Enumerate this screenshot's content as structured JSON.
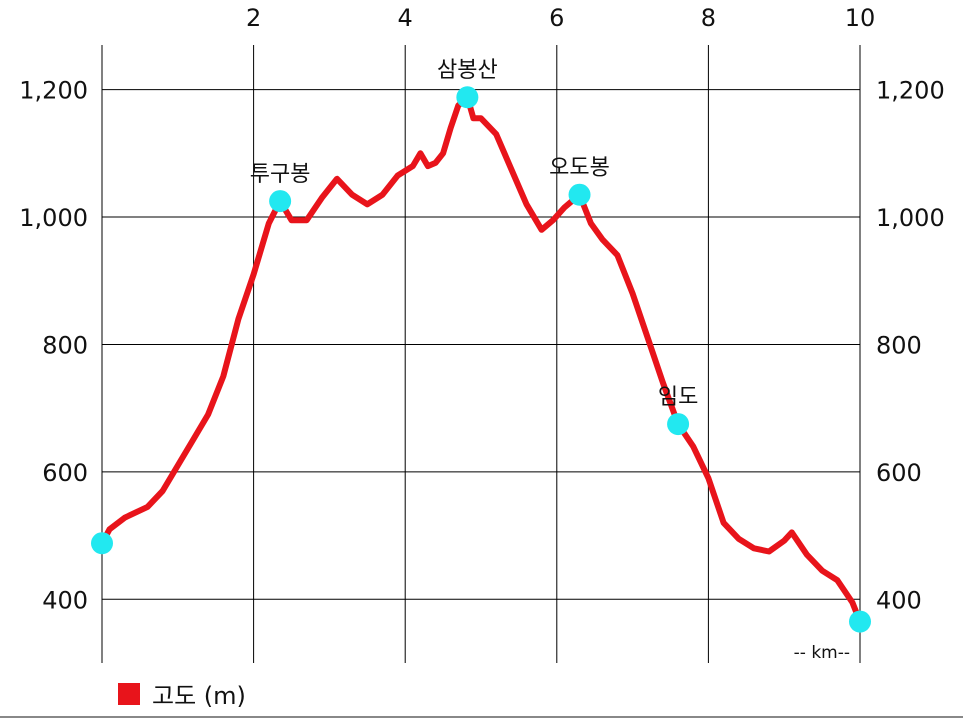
{
  "chart_data": {
    "type": "line",
    "x_unit_label": "-- km--",
    "xlim": [
      0,
      10
    ],
    "ylim": [
      300,
      1270
    ],
    "x_ticks": [
      2,
      4,
      6,
      8,
      10
    ],
    "y_ticks": [
      400,
      600,
      800,
      1000,
      1200
    ],
    "y_tick_labels": [
      "400",
      "600",
      "800",
      "1,000",
      "1,200"
    ],
    "grid": true,
    "series": [
      {
        "name": "고도 (m)",
        "color": "#e8141b",
        "x": [
          0,
          0.1,
          0.3,
          0.6,
          0.8,
          1.0,
          1.2,
          1.4,
          1.6,
          1.8,
          2.0,
          2.2,
          2.35,
          2.5,
          2.7,
          2.9,
          3.1,
          3.3,
          3.5,
          3.7,
          3.9,
          4.1,
          4.2,
          4.3,
          4.4,
          4.5,
          4.6,
          4.7,
          4.82,
          4.9,
          5.0,
          5.2,
          5.4,
          5.6,
          5.8,
          5.95,
          6.1,
          6.3,
          6.45,
          6.6,
          6.8,
          7.0,
          7.2,
          7.4,
          7.6,
          7.8,
          8.0,
          8.2,
          8.4,
          8.6,
          8.8,
          9.0,
          9.1,
          9.3,
          9.5,
          9.7,
          9.9,
          10.0
        ],
        "y": [
          488,
          510,
          528,
          545,
          570,
          610,
          650,
          690,
          750,
          840,
          910,
          990,
          1025,
          995,
          995,
          1030,
          1060,
          1035,
          1020,
          1035,
          1065,
          1080,
          1100,
          1080,
          1085,
          1100,
          1140,
          1175,
          1188,
          1155,
          1155,
          1130,
          1075,
          1020,
          980,
          995,
          1015,
          1035,
          990,
          965,
          940,
          880,
          810,
          740,
          675,
          640,
          590,
          520,
          495,
          480,
          475,
          492,
          505,
          470,
          445,
          430,
          395,
          365
        ]
      }
    ],
    "annotations": [
      {
        "label": "",
        "x": 0.0,
        "y": 488
      },
      {
        "label": "투구봉",
        "x": 2.35,
        "y": 1025
      },
      {
        "label": "삼봉산",
        "x": 4.82,
        "y": 1188
      },
      {
        "label": "오도봉",
        "x": 6.3,
        "y": 1035
      },
      {
        "label": "임도",
        "x": 7.6,
        "y": 675
      },
      {
        "label": "",
        "x": 10.0,
        "y": 365
      }
    ],
    "marker_color": "#22e8f0",
    "legend": {
      "position": "bottom-left",
      "label": "고도 (m)",
      "color": "#e8141b"
    }
  }
}
